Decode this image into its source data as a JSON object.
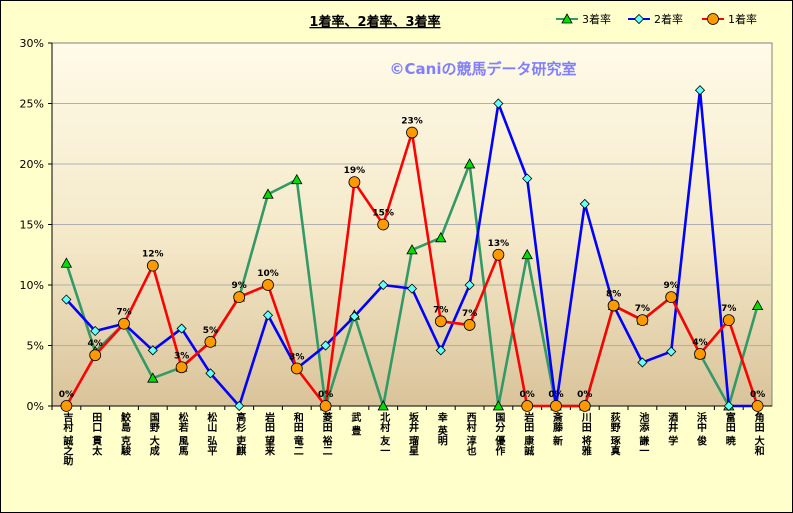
{
  "chart_data": {
    "type": "line",
    "title": "1着率、2着率、3着率",
    "watermark": "©Caniの競馬データ研究室",
    "categories": [
      "吉村 誠之助",
      "田口 貫太",
      "鮫島 克駿",
      "国野 大成",
      "松若 風馬",
      "松山 弘平",
      "高杉 吏麒",
      "岩田 望来",
      "和田 竜二",
      "菱田 裕二",
      "武 豊",
      "北村 友一",
      "坂井 瑠星",
      "幸 英明",
      "西村 淳也",
      "国分 優作",
      "岩田 康誠",
      "斎藤 新",
      "川田 将雅",
      "荻野 琢真",
      "池添 謙一",
      "酒井 学",
      "浜中 俊",
      "富田 暁",
      "角田 大和"
    ],
    "ylim": [
      0,
      30
    ],
    "yticks": [
      "0%",
      "5%",
      "10%",
      "15%",
      "20%",
      "25%",
      "30%"
    ],
    "grid": true,
    "legend_position": "top-right",
    "series": [
      {
        "name": "3着率",
        "color": "#339966",
        "marker": "triangle",
        "values": [
          11.8,
          4.5,
          6.8,
          2.3,
          3.2,
          5.3,
          9.0,
          17.5,
          18.7,
          0,
          7.5,
          0,
          12.9,
          13.9,
          20.0,
          0,
          12.5,
          0,
          0,
          8.3,
          7.1,
          9.0,
          4.3,
          0,
          8.3
        ]
      },
      {
        "name": "2着率",
        "color": "#0000ff",
        "marker": "diamond",
        "values": [
          8.8,
          6.2,
          6.8,
          4.6,
          6.4,
          2.7,
          0,
          7.5,
          3.1,
          5.0,
          7.4,
          10.0,
          9.7,
          4.6,
          10.0,
          25.0,
          18.8,
          0,
          16.7,
          8.3,
          3.6,
          4.5,
          26.1,
          0,
          0
        ]
      },
      {
        "name": "1着率",
        "color": "#ff0000",
        "marker": "circle",
        "values": [
          0,
          4.2,
          6.8,
          11.6,
          3.2,
          5.3,
          9.0,
          10.0,
          3.1,
          0,
          18.5,
          15.0,
          22.6,
          7.0,
          6.7,
          12.5,
          0,
          0,
          0,
          8.3,
          7.1,
          9.0,
          4.3,
          7.1,
          0
        ],
        "labels": [
          "0%",
          "4%",
          "7%",
          "12%",
          "3%",
          "5%",
          "9%",
          "10%",
          "3%",
          "0%",
          "19%",
          "15%",
          "23%",
          "7%",
          "7%",
          "13%",
          "0%",
          "0%",
          "0%",
          "8%",
          "7%",
          "9%",
          "4%",
          "7%",
          "0%"
        ]
      }
    ]
  }
}
